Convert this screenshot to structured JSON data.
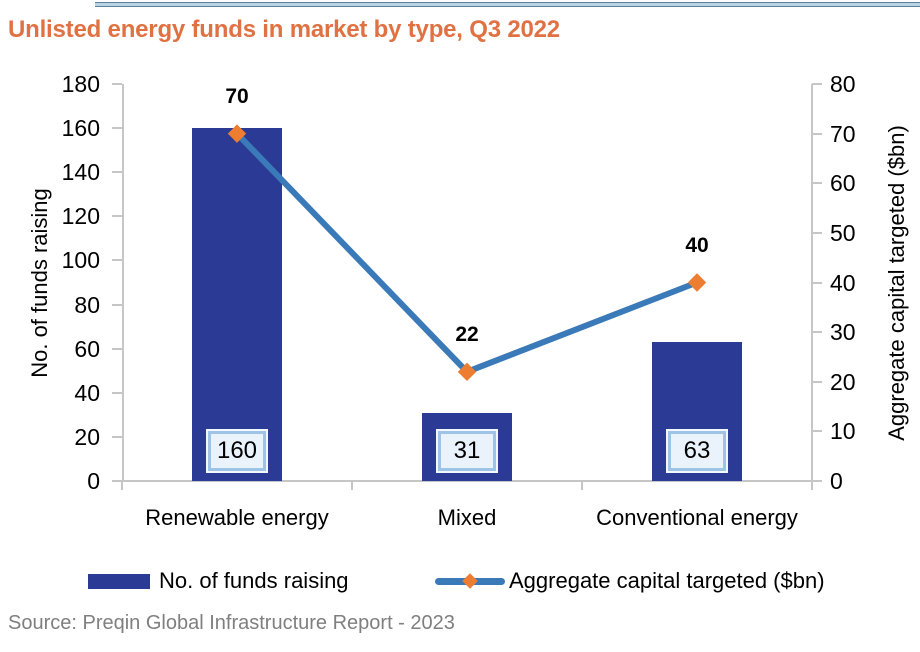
{
  "page": {
    "title": "Unlisted energy funds in market by type, Q3 2022",
    "source": "Source: Preqin Global Infrastructure Report - 2023"
  },
  "colors": {
    "title_orange": "#e07142",
    "bar_navy": "#2b3a94",
    "line_blue": "#3b7ab8",
    "marker_orange": "#ed7d31",
    "axis_gray": "#c6c6c6",
    "value_box_fill": "#eaf3fc",
    "value_box_border": "#9dc3e6",
    "source_gray": "#7f7f7f",
    "top_rule_light": "#b9d4e5",
    "top_rule_dark": "#5f7f96"
  },
  "chart_data": {
    "type": "bar",
    "subtype": "combo-bar-line-dual-axis",
    "title": "Unlisted energy funds in market by type, Q3 2022",
    "categories": [
      "Renewable energy",
      "Mixed",
      "Conventional energy"
    ],
    "series": [
      {
        "name": "No. of funds raising",
        "type": "bar",
        "axis": "left",
        "values": [
          160,
          31,
          63
        ],
        "color": "#2b3a94",
        "labels_in_boxes": [
          "160",
          "31",
          "63"
        ]
      },
      {
        "name": "Aggregate capital targeted ($bn)",
        "type": "line",
        "axis": "right",
        "values": [
          70,
          22,
          40
        ],
        "color": "#3b7ab8",
        "marker": "diamond",
        "marker_color": "#ed7d31",
        "point_labels": [
          "70",
          "22",
          "40"
        ]
      }
    ],
    "left_axis": {
      "label": "No. of funds raising",
      "min": 0,
      "max": 180,
      "step": 20
    },
    "right_axis": {
      "label": "Aggregate capital targeted ($bn)",
      "min": 0,
      "max": 80,
      "step": 10
    },
    "grid": false,
    "legend_position": "bottom"
  }
}
